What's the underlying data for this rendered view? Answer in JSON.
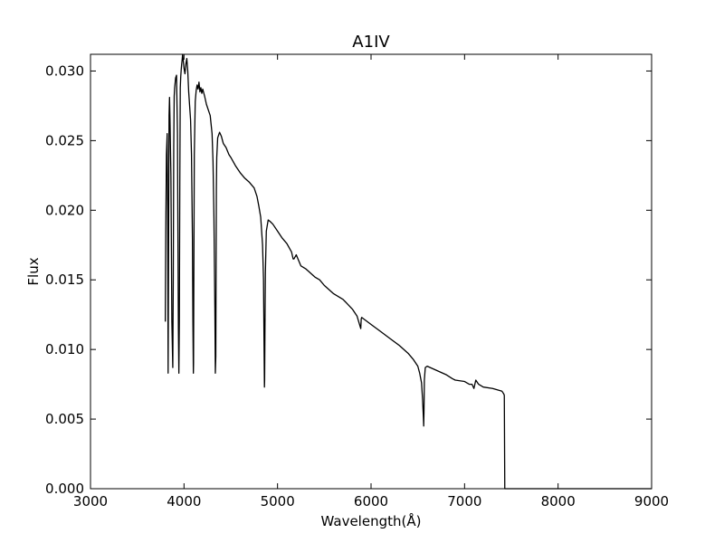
{
  "chart_data": {
    "type": "line",
    "title": "A1IV",
    "xlabel": "Wavelength(Å)",
    "ylabel": "Flux",
    "xlim": [
      3000,
      9000
    ],
    "ylim": [
      0.0,
      0.0312
    ],
    "grid": false,
    "legend": "none",
    "line_color": "#000000",
    "xticks": [
      {
        "value": 3000,
        "label": "3000"
      },
      {
        "value": 4000,
        "label": "4000"
      },
      {
        "value": 5000,
        "label": "5000"
      },
      {
        "value": 6000,
        "label": "6000"
      },
      {
        "value": 7000,
        "label": "7000"
      },
      {
        "value": 8000,
        "label": "8000"
      },
      {
        "value": 9000,
        "label": "9000"
      }
    ],
    "yticks": [
      {
        "value": 0.0,
        "label": "0.000"
      },
      {
        "value": 0.005,
        "label": "0.005"
      },
      {
        "value": 0.01,
        "label": "0.010"
      },
      {
        "value": 0.015,
        "label": "0.015"
      },
      {
        "value": 0.02,
        "label": "0.020"
      },
      {
        "value": 0.025,
        "label": "0.025"
      },
      {
        "value": 0.03,
        "label": "0.030"
      }
    ],
    "series": [
      {
        "x": [
          3800,
          3805,
          3812,
          3820,
          3825,
          3830,
          3835,
          3840,
          3845,
          3850,
          3860,
          3870,
          3880,
          3885,
          3890,
          3895,
          3900,
          3910,
          3920,
          3930,
          3935,
          3940,
          3945,
          3950,
          3955,
          3960,
          3965,
          3970,
          3975,
          3980,
          3985,
          3990,
          4000,
          4010,
          4020,
          4030,
          4040,
          4050,
          4060,
          4070,
          4080,
          4090,
          4095,
          4100,
          4102,
          4105,
          4110,
          4120,
          4130,
          4140,
          4150,
          4160,
          4170,
          4180,
          4190,
          4200,
          4220,
          4240,
          4260,
          4280,
          4300,
          4310,
          4320,
          4330,
          4335,
          4340,
          4343,
          4346,
          4350,
          4360,
          4380,
          4400,
          4420,
          4450,
          4480,
          4500,
          4550,
          4600,
          4650,
          4700,
          4750,
          4780,
          4800,
          4820,
          4840,
          4850,
          4855,
          4860,
          4862,
          4865,
          4870,
          4880,
          4900,
          4920,
          4950,
          5000,
          5050,
          5100,
          5150,
          5167,
          5175,
          5200,
          5250,
          5300,
          5350,
          5400,
          5450,
          5500,
          5600,
          5700,
          5800,
          5850,
          5890,
          5895,
          5900,
          6000,
          6100,
          6200,
          6300,
          6400,
          6450,
          6500,
          6520,
          6540,
          6550,
          6560,
          6563,
          6566,
          6570,
          6580,
          6600,
          6700,
          6800,
          6870,
          6900,
          7000,
          7050,
          7080,
          7100,
          7120,
          7150,
          7200,
          7300,
          7400,
          7420,
          7425,
          7430,
          7500,
          8000,
          9000
        ],
        "y": [
          0.012,
          0.0185,
          0.024,
          0.0255,
          0.02,
          0.0083,
          0.017,
          0.0268,
          0.0281,
          0.0265,
          0.0225,
          0.012,
          0.0087,
          0.015,
          0.0245,
          0.0282,
          0.0288,
          0.0295,
          0.0297,
          0.0255,
          0.018,
          0.0115,
          0.0083,
          0.012,
          0.022,
          0.0288,
          0.0296,
          0.0301,
          0.0305,
          0.0308,
          0.0312,
          0.0309,
          0.0302,
          0.0298,
          0.0305,
          0.0309,
          0.03,
          0.0285,
          0.0275,
          0.0265,
          0.024,
          0.018,
          0.012,
          0.0083,
          0.009,
          0.015,
          0.024,
          0.0278,
          0.0286,
          0.029,
          0.0287,
          0.0292,
          0.0285,
          0.0288,
          0.0284,
          0.0287,
          0.0282,
          0.0276,
          0.0272,
          0.0268,
          0.0255,
          0.0235,
          0.0195,
          0.013,
          0.0083,
          0.0095,
          0.016,
          0.0215,
          0.0238,
          0.0252,
          0.0256,
          0.0253,
          0.0248,
          0.0245,
          0.024,
          0.0238,
          0.0232,
          0.0227,
          0.0223,
          0.022,
          0.0216,
          0.021,
          0.0203,
          0.0195,
          0.0175,
          0.015,
          0.011,
          0.0073,
          0.0078,
          0.011,
          0.0155,
          0.0185,
          0.0193,
          0.0192,
          0.019,
          0.0185,
          0.018,
          0.0176,
          0.017,
          0.0165,
          0.0165,
          0.0168,
          0.016,
          0.0158,
          0.0155,
          0.0152,
          0.015,
          0.0146,
          0.014,
          0.0136,
          0.0129,
          0.0124,
          0.0115,
          0.0122,
          0.0123,
          0.0118,
          0.0113,
          0.0108,
          0.0103,
          0.0097,
          0.0093,
          0.0088,
          0.0083,
          0.0076,
          0.0065,
          0.0051,
          0.0045,
          0.0055,
          0.0078,
          0.0087,
          0.0088,
          0.0085,
          0.0082,
          0.0079,
          0.0078,
          0.0077,
          0.0075,
          0.0075,
          0.0072,
          0.0078,
          0.0075,
          0.0073,
          0.0072,
          0.007,
          0.0068,
          0.0067,
          0.0,
          0.0,
          0.0,
          0.0
        ]
      }
    ]
  }
}
